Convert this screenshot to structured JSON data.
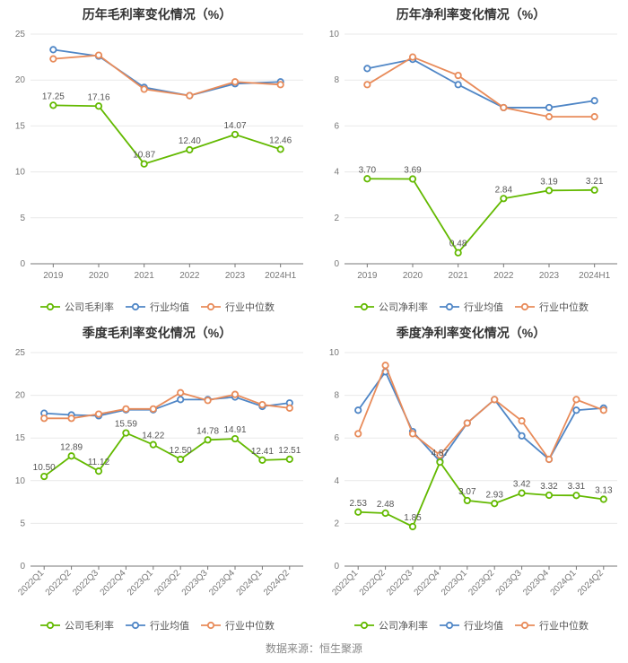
{
  "footer_text": "数据来源：恒生聚源",
  "global": {
    "font_family": "Microsoft YaHei",
    "title_fontsize": 14,
    "title_fontweight": "bold",
    "title_color": "#333333",
    "axis_color": "#777777",
    "axis_fontsize": 10,
    "tick_label_color": "#777777",
    "grid_color": "#e9e9e9",
    "line_width": 1.8,
    "marker_radius": 3.2,
    "marker_fill": "#ffffff",
    "data_label_fontsize": 10,
    "data_label_color": "#555555",
    "legend_fontsize": 11,
    "legend_color": "#555555",
    "background_color": "#ffffff",
    "footer_fontsize": 12,
    "footer_color": "#888888"
  },
  "series_colors": {
    "company": "#63b900",
    "industry_avg": "#4f86c6",
    "industry_median": "#e88b5a"
  },
  "charts": {
    "top_left": {
      "title": "历年毛利率变化情况（%）",
      "type": "line",
      "x_labels": [
        "2019",
        "2020",
        "2021",
        "2022",
        "2023",
        "2024H1"
      ],
      "x_label_rotation": 0,
      "ylim": [
        0,
        25
      ],
      "ytick_step": 5,
      "series": [
        {
          "key": "company",
          "values": [
            17.25,
            17.16,
            10.87,
            12.4,
            14.07,
            12.46
          ],
          "point_labels": [
            "17.25",
            "17.16",
            "10.87",
            "12.40",
            "14.07",
            "12.46"
          ]
        },
        {
          "key": "industry_avg",
          "values": [
            23.3,
            22.6,
            19.2,
            18.3,
            19.6,
            19.8
          ],
          "point_labels": []
        },
        {
          "key": "industry_median",
          "values": [
            22.3,
            22.7,
            19.0,
            18.3,
            19.8,
            19.5
          ],
          "point_labels": []
        }
      ],
      "legend": [
        "公司毛利率",
        "行业均值",
        "行业中位数"
      ]
    },
    "top_right": {
      "title": "历年净利率变化情况（%）",
      "type": "line",
      "x_labels": [
        "2019",
        "2020",
        "2021",
        "2022",
        "2023",
        "2024H1"
      ],
      "x_label_rotation": 0,
      "ylim": [
        0,
        10
      ],
      "ytick_step": 2,
      "series": [
        {
          "key": "company",
          "values": [
            3.7,
            3.69,
            0.48,
            2.84,
            3.19,
            3.21
          ],
          "point_labels": [
            "3.70",
            "3.69",
            "0.48",
            "2.84",
            "3.19",
            "3.21"
          ]
        },
        {
          "key": "industry_avg",
          "values": [
            8.5,
            8.9,
            7.8,
            6.8,
            6.8,
            7.1
          ],
          "point_labels": []
        },
        {
          "key": "industry_median",
          "values": [
            7.8,
            9.0,
            8.2,
            6.8,
            6.4,
            6.4
          ],
          "point_labels": []
        }
      ],
      "legend": [
        "公司净利率",
        "行业均值",
        "行业中位数"
      ]
    },
    "bottom_left": {
      "title": "季度毛利率变化情况（%）",
      "type": "line",
      "x_labels": [
        "2022Q1",
        "2022Q2",
        "2022Q3",
        "2022Q4",
        "2023Q1",
        "2023Q2",
        "2023Q3",
        "2023Q4",
        "2024Q1",
        "2024Q2"
      ],
      "x_label_rotation": -45,
      "ylim": [
        0,
        25
      ],
      "ytick_step": 5,
      "series": [
        {
          "key": "company",
          "values": [
            10.5,
            12.89,
            11.12,
            15.59,
            14.22,
            12.5,
            14.78,
            14.91,
            12.41,
            12.51
          ],
          "point_labels": [
            "10.50",
            "12.89",
            "11.12",
            "15.59",
            "14.22",
            "12.50",
            "14.78",
            "14.91",
            "12.41",
            "12.51"
          ]
        },
        {
          "key": "industry_avg",
          "values": [
            17.9,
            17.7,
            17.6,
            18.3,
            18.3,
            19.5,
            19.5,
            19.8,
            18.7,
            19.1
          ],
          "point_labels": []
        },
        {
          "key": "industry_median",
          "values": [
            17.3,
            17.3,
            17.8,
            18.4,
            18.4,
            20.3,
            19.4,
            20.1,
            18.9,
            18.5
          ],
          "point_labels": []
        }
      ],
      "legend": [
        "公司毛利率",
        "行业均值",
        "行业中位数"
      ]
    },
    "bottom_right": {
      "title": "季度净利率变化情况（%）",
      "type": "line",
      "x_labels": [
        "2022Q1",
        "2022Q2",
        "2022Q3",
        "2022Q4",
        "2023Q1",
        "2023Q2",
        "2023Q3",
        "2023Q4",
        "2024Q1",
        "2024Q2"
      ],
      "x_label_rotation": -45,
      "ylim": [
        0,
        10
      ],
      "ytick_step": 2,
      "series": [
        {
          "key": "company",
          "values": [
            2.53,
            2.48,
            1.85,
            4.87,
            3.07,
            2.93,
            3.42,
            3.32,
            3.31,
            3.13
          ],
          "point_labels": [
            "2.53",
            "2.48",
            "1.85",
            "4.87",
            "3.07",
            "2.93",
            "3.42",
            "3.32",
            "3.31",
            "3.13"
          ]
        },
        {
          "key": "industry_avg",
          "values": [
            7.3,
            9.1,
            6.3,
            4.9,
            6.7,
            7.8,
            6.1,
            5.0,
            7.3,
            7.4
          ],
          "point_labels": []
        },
        {
          "key": "industry_median",
          "values": [
            6.2,
            9.4,
            6.2,
            5.2,
            6.7,
            7.8,
            6.8,
            5.0,
            7.8,
            7.3
          ],
          "point_labels": []
        }
      ],
      "legend": [
        "公司净利率",
        "行业均值",
        "行业中位数"
      ]
    }
  }
}
